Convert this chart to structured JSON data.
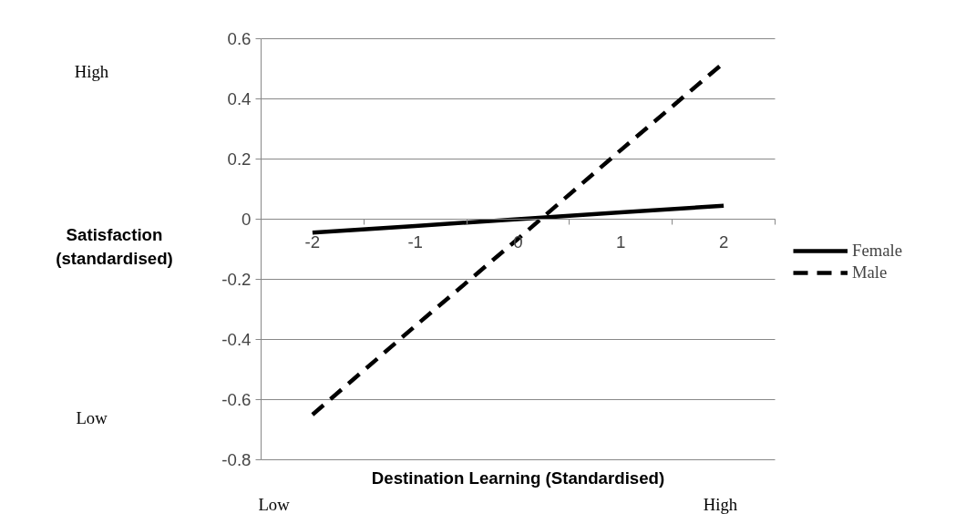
{
  "chart_data": {
    "type": "line",
    "xlabel": "Destination Learning (Standardised)",
    "ylabel": "Satisfaction (standardised)",
    "categories": [
      "-2",
      "-1",
      "0",
      "1",
      "2"
    ],
    "series": [
      {
        "name": "Female",
        "color": "#000000",
        "line_style": "solid",
        "values": [
          -0.045,
          -0.0225,
          0,
          0.0225,
          0.045
        ]
      },
      {
        "name": "Male",
        "color": "#000000",
        "line_style": "dashed",
        "values": [
          -0.65,
          -0.355,
          -0.065,
          0.23,
          0.52
        ]
      }
    ],
    "ylim": [
      -0.8,
      0.6
    ],
    "yticks": [
      -0.8,
      -0.6,
      -0.4,
      -0.2,
      0,
      0.2,
      0.4,
      0.6
    ],
    "grid": "y",
    "legend": "right",
    "marker": "none",
    "annotations": [
      "High",
      "Low",
      "Low",
      "High"
    ]
  }
}
